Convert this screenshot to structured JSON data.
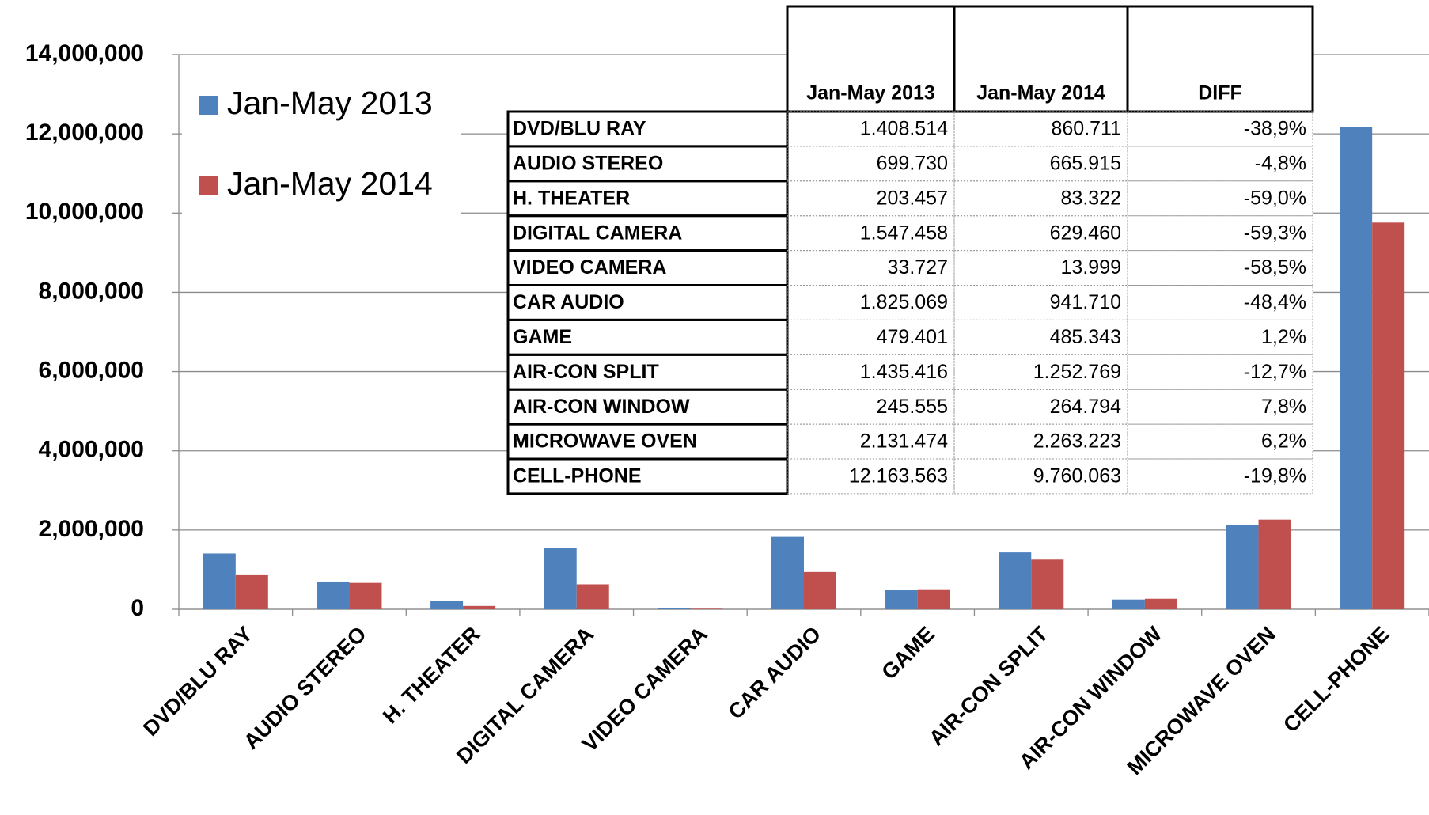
{
  "chart_data": {
    "type": "bar",
    "categories": [
      "DVD/BLU RAY",
      "AUDIO STEREO",
      "H. THEATER",
      "DIGITAL CAMERA",
      "VIDEO CAMERA",
      "CAR AUDIO",
      "GAME",
      "AIR-CON SPLIT",
      "AIR-CON WINDOW",
      "MICROWAVE OVEN",
      "CELL-PHONE"
    ],
    "series": [
      {
        "name": "Jan-May 2013",
        "color": "#4f81bd",
        "values": [
          1408514,
          699730,
          203457,
          1547458,
          33727,
          1825069,
          479401,
          1435416,
          245555,
          2131474,
          12163563
        ]
      },
      {
        "name": "Jan-May 2014",
        "color": "#c0504d",
        "values": [
          860711,
          665915,
          83322,
          629460,
          13999,
          941710,
          485343,
          1252769,
          264794,
          2263223,
          9760063
        ]
      }
    ],
    "ylim": [
      0,
      14000000
    ],
    "yticks": [
      0,
      {
        "value": 2000000,
        "label": "2,000,000"
      },
      {
        "value": 4000000,
        "label": "4,000,000"
      },
      {
        "value": 6000000,
        "label": "6,000,000"
      },
      {
        "value": 8000000,
        "label": "8,000,000"
      },
      {
        "value": 10000000,
        "label": "10,000,000"
      },
      {
        "value": 12000000,
        "label": "12,000,000"
      },
      {
        "value": 14000000,
        "label": "14,000,000"
      }
    ],
    "grid": true,
    "legend": "upper left"
  },
  "table": {
    "header": [
      "Jan-May 2013",
      "Jan-May 2014",
      "DIFF"
    ],
    "rows": [
      [
        "DVD/BLU RAY",
        "1.408.514",
        "860.711",
        "-38,9%"
      ],
      [
        "AUDIO STEREO",
        "699.730",
        "665.915",
        "-4,8%"
      ],
      [
        "H. THEATER",
        "203.457",
        "83.322",
        "-59,0%"
      ],
      [
        "DIGITAL CAMERA",
        "1.547.458",
        "629.460",
        "-59,3%"
      ],
      [
        "VIDEO CAMERA",
        "33.727",
        "13.999",
        "-58,5%"
      ],
      [
        "CAR AUDIO",
        "1.825.069",
        "941.710",
        "-48,4%"
      ],
      [
        "GAME",
        "479.401",
        "485.343",
        "1,2%"
      ],
      [
        "AIR-CON SPLIT",
        "1.435.416",
        "1.252.769",
        "-12,7%"
      ],
      [
        "AIR-CON WINDOW",
        "245.555",
        "264.794",
        "7,8%"
      ],
      [
        "MICROWAVE OVEN",
        "2.131.474",
        "2.263.223",
        "6,2%"
      ],
      [
        "CELL-PHONE",
        "12.163.563",
        "9.760.063",
        "-19,8%"
      ]
    ]
  }
}
